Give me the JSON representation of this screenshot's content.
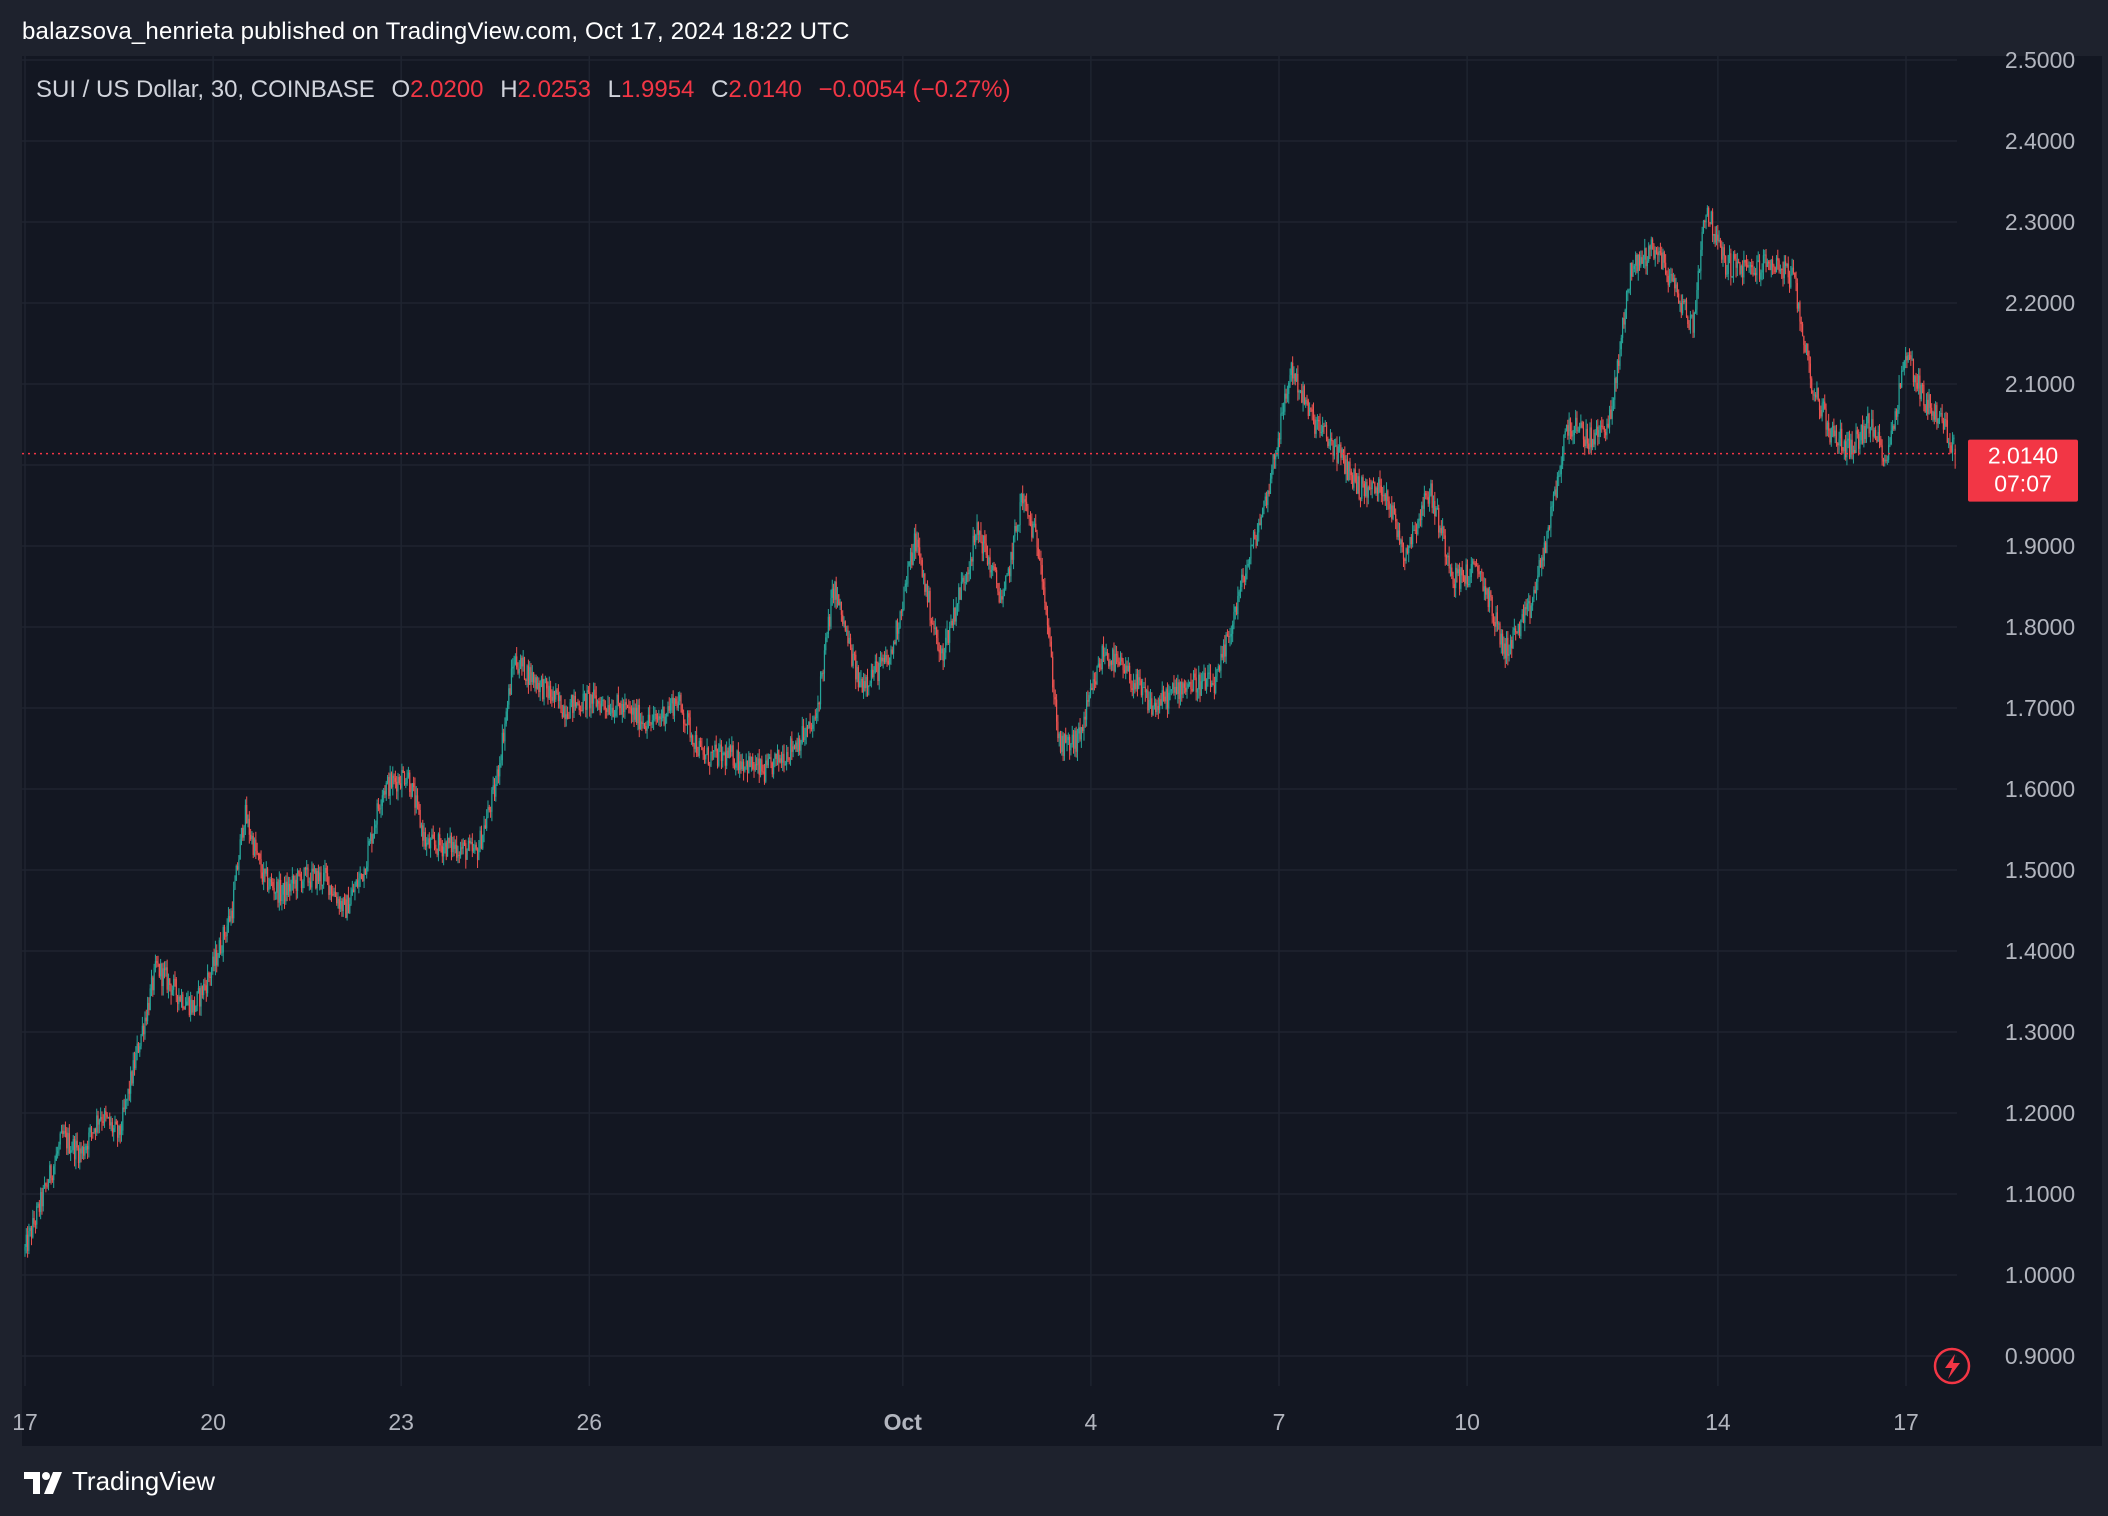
{
  "header": {
    "attribution": "balazsova_henrieta published on TradingView.com, Oct 17, 2024 18:22 UTC"
  },
  "legend": {
    "symbol": "SUI / US Dollar, 30, COINBASE",
    "open_label": "O",
    "open": "2.0200",
    "high_label": "H",
    "high": "2.0253",
    "low_label": "L",
    "low": "1.9954",
    "close_label": "C",
    "close": "2.0140",
    "change": "−0.0054 (−0.27%)"
  },
  "price_badge": {
    "price": "2.0140",
    "countdown": "07:07"
  },
  "footer": {
    "brand": "TradingView"
  },
  "colors": {
    "up": "#26a69a",
    "down": "#ef5350",
    "background": "#131722",
    "badge": "#f23645",
    "grid": "#1e222d"
  },
  "chart_data": {
    "type": "candlestick",
    "y_ticks": [
      "2.5000",
      "2.4000",
      "2.3000",
      "2.2000",
      "2.1000",
      "2.0000",
      "1.9000",
      "1.8000",
      "1.7000",
      "1.6000",
      "1.5000",
      "1.4000",
      "1.3000",
      "1.2000",
      "1.1000",
      "1.0000",
      "0.9000"
    ],
    "ylim": [
      0.9,
      2.5
    ],
    "x_ticks": [
      {
        "label": "17",
        "day": 17
      },
      {
        "label": "20",
        "day": 20
      },
      {
        "label": "23",
        "day": 23
      },
      {
        "label": "26",
        "day": 26
      },
      {
        "label": "Oct",
        "day": 31,
        "bold": true
      },
      {
        "label": "4",
        "day": 34
      },
      {
        "label": "7",
        "day": 37
      },
      {
        "label": "10",
        "day": 40
      },
      {
        "label": "14",
        "day": 44
      },
      {
        "label": "17",
        "day": 47
      }
    ],
    "x_range_days": [
      17.0,
      47.8
    ],
    "last_price": 2.014,
    "series": [
      {
        "day": 17.0,
        "price": 1.03
      },
      {
        "day": 17.3,
        "price": 1.1
      },
      {
        "day": 17.6,
        "price": 1.17
      },
      {
        "day": 17.9,
        "price": 1.15
      },
      {
        "day": 18.2,
        "price": 1.2
      },
      {
        "day": 18.5,
        "price": 1.17
      },
      {
        "day": 18.8,
        "price": 1.28
      },
      {
        "day": 19.1,
        "price": 1.38
      },
      {
        "day": 19.4,
        "price": 1.35
      },
      {
        "day": 19.7,
        "price": 1.33
      },
      {
        "day": 20.0,
        "price": 1.38
      },
      {
        "day": 20.3,
        "price": 1.45
      },
      {
        "day": 20.5,
        "price": 1.57
      },
      {
        "day": 20.8,
        "price": 1.49
      },
      {
        "day": 21.1,
        "price": 1.47
      },
      {
        "day": 21.4,
        "price": 1.49
      },
      {
        "day": 21.8,
        "price": 1.49
      },
      {
        "day": 22.1,
        "price": 1.45
      },
      {
        "day": 22.4,
        "price": 1.5
      },
      {
        "day": 22.7,
        "price": 1.6
      },
      {
        "day": 23.1,
        "price": 1.62
      },
      {
        "day": 23.4,
        "price": 1.53
      },
      {
        "day": 23.8,
        "price": 1.53
      },
      {
        "day": 24.2,
        "price": 1.52
      },
      {
        "day": 24.5,
        "price": 1.6
      },
      {
        "day": 24.8,
        "price": 1.76
      },
      {
        "day": 25.2,
        "price": 1.73
      },
      {
        "day": 25.6,
        "price": 1.7
      },
      {
        "day": 26.0,
        "price": 1.71
      },
      {
        "day": 26.5,
        "price": 1.7
      },
      {
        "day": 27.0,
        "price": 1.68
      },
      {
        "day": 27.4,
        "price": 1.71
      },
      {
        "day": 27.8,
        "price": 1.64
      },
      {
        "day": 28.3,
        "price": 1.64
      },
      {
        "day": 28.8,
        "price": 1.62
      },
      {
        "day": 29.2,
        "price": 1.65
      },
      {
        "day": 29.6,
        "price": 1.68
      },
      {
        "day": 29.9,
        "price": 1.85
      },
      {
        "day": 30.3,
        "price": 1.73
      },
      {
        "day": 30.8,
        "price": 1.76
      },
      {
        "day": 31.2,
        "price": 1.91
      },
      {
        "day": 31.6,
        "price": 1.76
      },
      {
        "day": 31.9,
        "price": 1.84
      },
      {
        "day": 32.2,
        "price": 1.92
      },
      {
        "day": 32.6,
        "price": 1.83
      },
      {
        "day": 32.9,
        "price": 1.96
      },
      {
        "day": 33.2,
        "price": 1.89
      },
      {
        "day": 33.5,
        "price": 1.65
      },
      {
        "day": 33.8,
        "price": 1.66
      },
      {
        "day": 34.2,
        "price": 1.77
      },
      {
        "day": 34.6,
        "price": 1.74
      },
      {
        "day": 35.0,
        "price": 1.7
      },
      {
        "day": 35.5,
        "price": 1.73
      },
      {
        "day": 36.0,
        "price": 1.73
      },
      {
        "day": 36.4,
        "price": 1.85
      },
      {
        "day": 36.8,
        "price": 1.96
      },
      {
        "day": 37.2,
        "price": 2.12
      },
      {
        "day": 37.5,
        "price": 2.06
      },
      {
        "day": 37.9,
        "price": 2.02
      },
      {
        "day": 38.3,
        "price": 1.97
      },
      {
        "day": 38.7,
        "price": 1.97
      },
      {
        "day": 39.0,
        "price": 1.89
      },
      {
        "day": 39.4,
        "price": 1.97
      },
      {
        "day": 39.8,
        "price": 1.86
      },
      {
        "day": 40.2,
        "price": 1.87
      },
      {
        "day": 40.6,
        "price": 1.77
      },
      {
        "day": 41.0,
        "price": 1.82
      },
      {
        "day": 41.3,
        "price": 1.92
      },
      {
        "day": 41.6,
        "price": 2.05
      },
      {
        "day": 42.0,
        "price": 2.03
      },
      {
        "day": 42.3,
        "price": 2.06
      },
      {
        "day": 42.6,
        "price": 2.24
      },
      {
        "day": 43.0,
        "price": 2.27
      },
      {
        "day": 43.3,
        "price": 2.22
      },
      {
        "day": 43.6,
        "price": 2.17
      },
      {
        "day": 43.8,
        "price": 2.32
      },
      {
        "day": 44.1,
        "price": 2.25
      },
      {
        "day": 44.5,
        "price": 2.24
      },
      {
        "day": 44.9,
        "price": 2.25
      },
      {
        "day": 45.2,
        "price": 2.23
      },
      {
        "day": 45.5,
        "price": 2.1
      },
      {
        "day": 45.8,
        "price": 2.04
      },
      {
        "day": 46.1,
        "price": 2.02
      },
      {
        "day": 46.4,
        "price": 2.05
      },
      {
        "day": 46.7,
        "price": 2.01
      },
      {
        "day": 47.0,
        "price": 2.14
      },
      {
        "day": 47.3,
        "price": 2.08
      },
      {
        "day": 47.6,
        "price": 2.05
      },
      {
        "day": 47.8,
        "price": 2.014
      }
    ]
  }
}
